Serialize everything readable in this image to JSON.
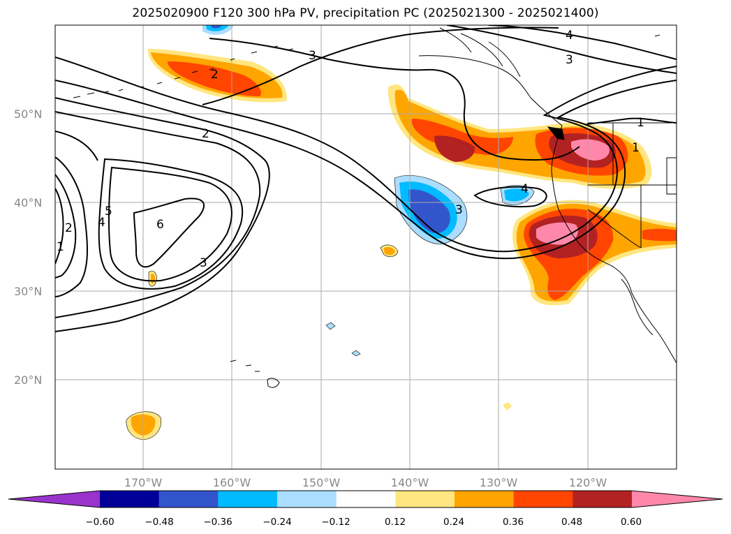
{
  "title": "2025020900 F120 300 hPa PV, precipitation PC (2025021300 - 2025021400)",
  "map": {
    "lat_ticks": [
      "50°N",
      "40°N",
      "30°N",
      "20°N"
    ],
    "lon_ticks": [
      "170°W",
      "160°W",
      "150°W",
      "140°W",
      "130°W",
      "120°W"
    ],
    "pv_contour_labels": [
      "3",
      "2",
      "2",
      "5",
      "4",
      "6",
      "2",
      "1",
      "3",
      "4",
      "3",
      "4",
      "3",
      "1",
      "1"
    ]
  },
  "colorbar": {
    "colors": [
      "#9933cc",
      "#000099",
      "#3355cc",
      "#00bbff",
      "#aaddff",
      "#ffffff",
      "#ffe680",
      "#ffa500",
      "#ff4500",
      "#b22222",
      "#ff88aa"
    ],
    "tick_labels": [
      "−0.60",
      "−0.48",
      "−0.36",
      "−0.24",
      "−0.12",
      "0.12",
      "0.24",
      "0.36",
      "0.48",
      "0.60"
    ]
  }
}
